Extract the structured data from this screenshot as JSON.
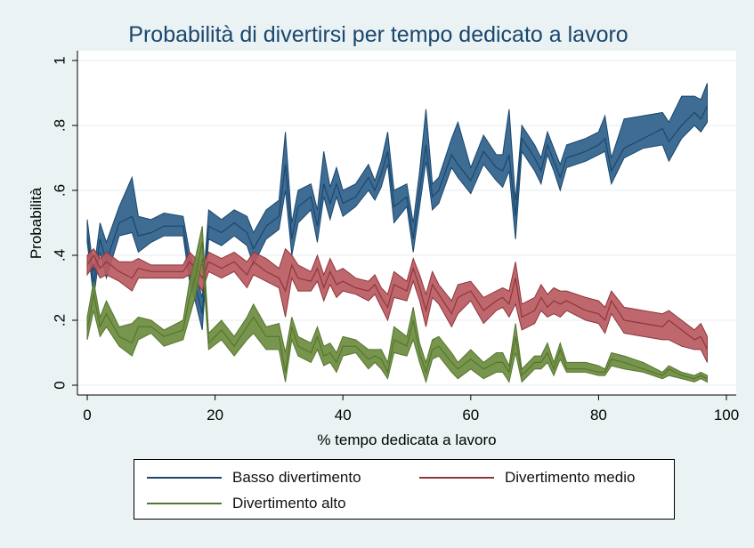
{
  "chart_data": {
    "type": "area",
    "title": "Probabilità di divertirsi per tempo dedicato a lavoro",
    "xlabel": "% tempo dedicata a lavoro",
    "ylabel": "Probabilità",
    "xlim": [
      0,
      100
    ],
    "ylim": [
      0,
      1
    ],
    "xticks": [
      "0",
      "20",
      "40",
      "60",
      "80",
      "100"
    ],
    "xtick_values": [
      0,
      20,
      40,
      60,
      80,
      100
    ],
    "yticks": [
      "0",
      ".2",
      ".4",
      ".6",
      ".8",
      "1"
    ],
    "ytick_values": [
      0,
      0.2,
      0.4,
      0.6,
      0.8,
      1
    ],
    "grid": "horizontal",
    "legend_position": "bottom",
    "plot_background": "#ffffff",
    "page_background": "#eaf2f3",
    "x": [
      0,
      1,
      2,
      3,
      5,
      7,
      8,
      10,
      12,
      15,
      16,
      17,
      18,
      19,
      21,
      23,
      25,
      26,
      28,
      30,
      31,
      32,
      33,
      35,
      36,
      37,
      38,
      39,
      40,
      42,
      44,
      45,
      46,
      47,
      48,
      50,
      51,
      52,
      53,
      54,
      55,
      57,
      58,
      60,
      62,
      64,
      65,
      66,
      67,
      68,
      70,
      71,
      72,
      73,
      74,
      75,
      78,
      80,
      81,
      82,
      84,
      87,
      90,
      91,
      93,
      95,
      96,
      97
    ],
    "series": [
      {
        "name": "Basso divertimento",
        "color": "#1a476f",
        "fill": "#2f5f8a",
        "values": [
          0.47,
          0.31,
          0.45,
          0.38,
          0.5,
          0.52,
          0.46,
          0.47,
          0.49,
          0.49,
          0.36,
          0.3,
          0.22,
          0.49,
          0.47,
          0.5,
          0.47,
          0.42,
          0.49,
          0.52,
          0.68,
          0.45,
          0.55,
          0.58,
          0.49,
          0.62,
          0.56,
          0.62,
          0.56,
          0.58,
          0.64,
          0.6,
          0.65,
          0.72,
          0.55,
          0.58,
          0.45,
          0.6,
          0.74,
          0.58,
          0.6,
          0.71,
          0.68,
          0.63,
          0.72,
          0.67,
          0.66,
          0.71,
          0.52,
          0.76,
          0.7,
          0.66,
          0.74,
          0.69,
          0.64,
          0.7,
          0.72,
          0.74,
          0.76,
          0.66,
          0.73,
          0.76,
          0.79,
          0.75,
          0.8,
          0.84,
          0.82,
          0.86
        ],
        "lower": [
          0.44,
          0.27,
          0.41,
          0.33,
          0.46,
          0.47,
          0.41,
          0.44,
          0.46,
          0.46,
          0.32,
          0.25,
          0.17,
          0.45,
          0.43,
          0.46,
          0.43,
          0.37,
          0.45,
          0.48,
          0.6,
          0.4,
          0.5,
          0.54,
          0.44,
          0.58,
          0.51,
          0.58,
          0.52,
          0.55,
          0.6,
          0.57,
          0.61,
          0.68,
          0.5,
          0.55,
          0.41,
          0.55,
          0.69,
          0.54,
          0.56,
          0.67,
          0.64,
          0.59,
          0.68,
          0.63,
          0.61,
          0.66,
          0.45,
          0.72,
          0.66,
          0.62,
          0.71,
          0.66,
          0.6,
          0.67,
          0.69,
          0.71,
          0.72,
          0.62,
          0.7,
          0.73,
          0.74,
          0.69,
          0.76,
          0.8,
          0.78,
          0.81
        ],
        "upper": [
          0.51,
          0.35,
          0.5,
          0.44,
          0.55,
          0.64,
          0.52,
          0.51,
          0.53,
          0.52,
          0.41,
          0.34,
          0.27,
          0.54,
          0.51,
          0.54,
          0.52,
          0.47,
          0.54,
          0.57,
          0.78,
          0.5,
          0.6,
          0.62,
          0.54,
          0.72,
          0.61,
          0.67,
          0.6,
          0.62,
          0.68,
          0.63,
          0.69,
          0.78,
          0.6,
          0.62,
          0.5,
          0.66,
          0.85,
          0.62,
          0.64,
          0.76,
          0.81,
          0.67,
          0.77,
          0.71,
          0.71,
          0.85,
          0.57,
          0.8,
          0.74,
          0.7,
          0.78,
          0.73,
          0.68,
          0.74,
          0.76,
          0.78,
          0.83,
          0.7,
          0.82,
          0.83,
          0.84,
          0.81,
          0.89,
          0.89,
          0.88,
          0.93
        ]
      },
      {
        "name": "Divertimento medio",
        "color": "#90353b",
        "fill": "#b85a5f",
        "values": [
          0.37,
          0.4,
          0.36,
          0.38,
          0.35,
          0.33,
          0.36,
          0.35,
          0.35,
          0.35,
          0.38,
          0.36,
          0.33,
          0.38,
          0.36,
          0.38,
          0.34,
          0.38,
          0.35,
          0.33,
          0.29,
          0.37,
          0.33,
          0.32,
          0.36,
          0.3,
          0.35,
          0.31,
          0.32,
          0.3,
          0.29,
          0.31,
          0.27,
          0.24,
          0.31,
          0.29,
          0.36,
          0.3,
          0.23,
          0.31,
          0.28,
          0.22,
          0.27,
          0.29,
          0.23,
          0.26,
          0.27,
          0.25,
          0.33,
          0.21,
          0.23,
          0.27,
          0.24,
          0.26,
          0.25,
          0.26,
          0.23,
          0.22,
          0.2,
          0.26,
          0.2,
          0.19,
          0.18,
          0.2,
          0.17,
          0.14,
          0.15,
          0.11
        ],
        "lower": [
          0.34,
          0.37,
          0.33,
          0.34,
          0.32,
          0.29,
          0.33,
          0.33,
          0.33,
          0.33,
          0.34,
          0.32,
          0.29,
          0.35,
          0.33,
          0.35,
          0.3,
          0.34,
          0.32,
          0.3,
          0.21,
          0.33,
          0.29,
          0.29,
          0.32,
          0.26,
          0.31,
          0.27,
          0.29,
          0.28,
          0.26,
          0.28,
          0.24,
          0.2,
          0.27,
          0.26,
          0.32,
          0.26,
          0.18,
          0.27,
          0.25,
          0.18,
          0.22,
          0.26,
          0.19,
          0.23,
          0.24,
          0.21,
          0.25,
          0.17,
          0.19,
          0.23,
          0.21,
          0.22,
          0.21,
          0.23,
          0.2,
          0.19,
          0.16,
          0.22,
          0.16,
          0.15,
          0.14,
          0.14,
          0.12,
          0.11,
          0.11,
          0.07
        ],
        "upper": [
          0.4,
          0.42,
          0.39,
          0.41,
          0.38,
          0.38,
          0.39,
          0.37,
          0.37,
          0.37,
          0.41,
          0.39,
          0.37,
          0.41,
          0.39,
          0.41,
          0.38,
          0.41,
          0.39,
          0.36,
          0.42,
          0.4,
          0.37,
          0.35,
          0.4,
          0.34,
          0.39,
          0.35,
          0.36,
          0.33,
          0.32,
          0.34,
          0.3,
          0.28,
          0.35,
          0.32,
          0.39,
          0.34,
          0.28,
          0.35,
          0.31,
          0.26,
          0.31,
          0.32,
          0.27,
          0.29,
          0.3,
          0.29,
          0.38,
          0.25,
          0.27,
          0.31,
          0.28,
          0.3,
          0.29,
          0.29,
          0.27,
          0.26,
          0.24,
          0.29,
          0.24,
          0.23,
          0.22,
          0.23,
          0.2,
          0.17,
          0.19,
          0.15
        ]
      },
      {
        "name": "Divertimento alto",
        "color": "#55752f",
        "fill": "#6d8c3e",
        "values": [
          0.17,
          0.28,
          0.18,
          0.22,
          0.15,
          0.13,
          0.18,
          0.18,
          0.15,
          0.17,
          0.27,
          0.34,
          0.44,
          0.13,
          0.17,
          0.12,
          0.18,
          0.21,
          0.15,
          0.15,
          0.04,
          0.18,
          0.12,
          0.1,
          0.15,
          0.09,
          0.1,
          0.07,
          0.12,
          0.12,
          0.08,
          0.09,
          0.08,
          0.04,
          0.14,
          0.12,
          0.2,
          0.1,
          0.04,
          0.11,
          0.12,
          0.07,
          0.05,
          0.08,
          0.05,
          0.07,
          0.07,
          0.04,
          0.15,
          0.03,
          0.07,
          0.07,
          0.1,
          0.05,
          0.11,
          0.05,
          0.05,
          0.04,
          0.04,
          0.08,
          0.07,
          0.05,
          0.03,
          0.05,
          0.03,
          0.02,
          0.03,
          0.02
        ],
        "lower": [
          0.14,
          0.23,
          0.15,
          0.18,
          0.12,
          0.09,
          0.14,
          0.16,
          0.12,
          0.14,
          0.21,
          0.28,
          0.39,
          0.11,
          0.14,
          0.09,
          0.14,
          0.16,
          0.11,
          0.11,
          0.01,
          0.14,
          0.09,
          0.07,
          0.11,
          0.06,
          0.07,
          0.04,
          0.09,
          0.1,
          0.05,
          0.07,
          0.05,
          0.02,
          0.1,
          0.09,
          0.14,
          0.07,
          0.01,
          0.08,
          0.09,
          0.04,
          0.02,
          0.05,
          0.02,
          0.04,
          0.04,
          0.01,
          0.1,
          0.01,
          0.05,
          0.05,
          0.07,
          0.03,
          0.08,
          0.04,
          0.04,
          0.03,
          0.03,
          0.06,
          0.05,
          0.04,
          0.02,
          0.03,
          0.02,
          0.01,
          0.02,
          0.01
        ],
        "upper": [
          0.21,
          0.32,
          0.21,
          0.26,
          0.18,
          0.19,
          0.21,
          0.2,
          0.17,
          0.2,
          0.32,
          0.4,
          0.49,
          0.16,
          0.2,
          0.15,
          0.21,
          0.25,
          0.18,
          0.19,
          0.1,
          0.21,
          0.15,
          0.13,
          0.18,
          0.12,
          0.13,
          0.1,
          0.15,
          0.14,
          0.11,
          0.11,
          0.11,
          0.07,
          0.18,
          0.15,
          0.24,
          0.13,
          0.07,
          0.14,
          0.15,
          0.1,
          0.07,
          0.11,
          0.07,
          0.1,
          0.1,
          0.06,
          0.19,
          0.05,
          0.09,
          0.09,
          0.13,
          0.07,
          0.13,
          0.07,
          0.07,
          0.06,
          0.05,
          0.1,
          0.09,
          0.07,
          0.04,
          0.06,
          0.04,
          0.03,
          0.04,
          0.03
        ]
      }
    ]
  }
}
